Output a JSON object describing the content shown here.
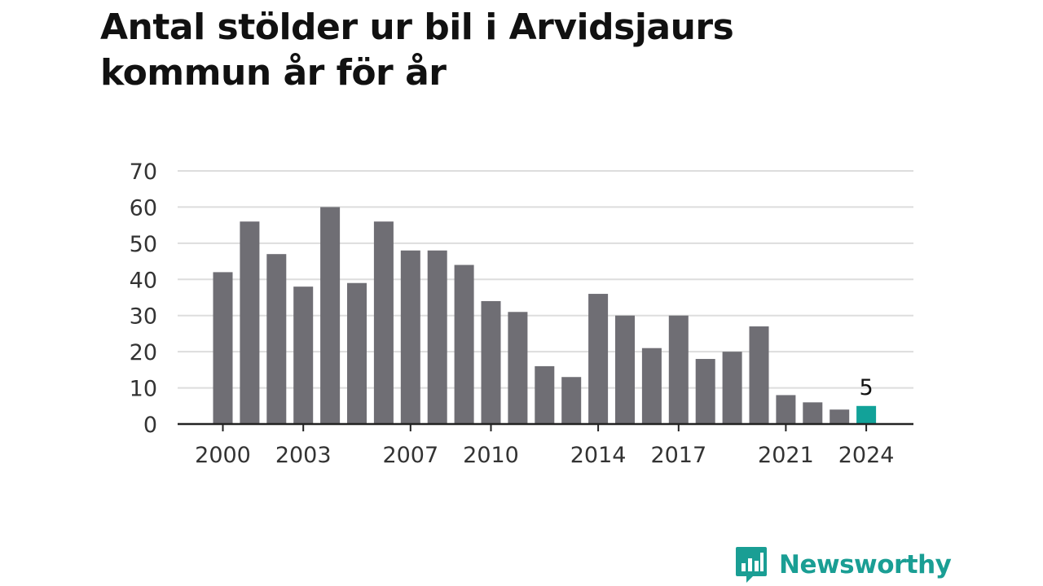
{
  "chart_data": {
    "type": "bar",
    "title": "Antal stölder ur bil i Arvidsjaurs kommun år för år",
    "xlabel": "",
    "ylabel": "",
    "ylim": [
      0,
      70
    ],
    "y_ticks": [
      "0",
      "10",
      "20",
      "30",
      "40",
      "50",
      "60",
      "70"
    ],
    "y_tick_values": [
      0,
      10,
      20,
      30,
      40,
      50,
      60,
      70
    ],
    "x_tick_labels": [
      "2000",
      "2003",
      "2007",
      "2010",
      "2014",
      "2017",
      "2021",
      "2024"
    ],
    "categories": [
      2000,
      2001,
      2002,
      2003,
      2004,
      2005,
      2006,
      2007,
      2008,
      2009,
      2010,
      2011,
      2012,
      2013,
      2014,
      2015,
      2016,
      2017,
      2018,
      2019,
      2020,
      2021,
      2022,
      2023,
      2024
    ],
    "values": [
      42,
      56,
      47,
      38,
      60,
      39,
      56,
      48,
      48,
      44,
      34,
      31,
      16,
      13,
      36,
      30,
      21,
      30,
      18,
      20,
      27,
      8,
      6,
      4,
      5
    ],
    "highlight": {
      "category": 2024,
      "label": "5"
    },
    "grid": true,
    "colors": {
      "bar": "#6f6e74",
      "highlight": "#12a299",
      "grid": "#dddddd",
      "axis": "#222222"
    }
  },
  "branding": {
    "logo_text": "Newsworthy",
    "logo_color": "#1a9e94",
    "icon": "bar-chart-speech-bubble-icon"
  }
}
